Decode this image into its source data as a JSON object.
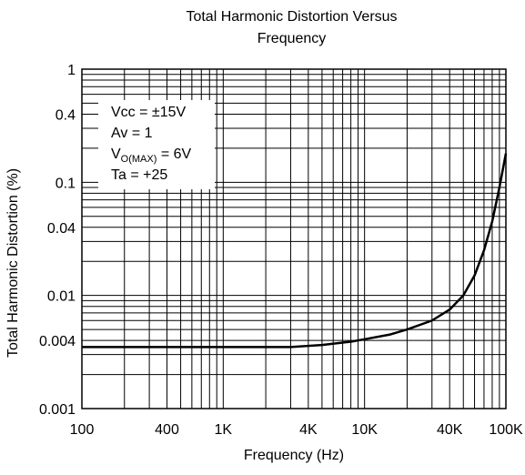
{
  "chart_data": {
    "type": "line",
    "title_line1": "Total Harmonic Distortion Versus",
    "title_line2": "Frequency",
    "xlabel": "Frequency (Hz)",
    "ylabel": "Total Harmonic Distortion (%)",
    "x_scale": "log",
    "y_scale": "log",
    "xlim": [
      100,
      100000
    ],
    "ylim": [
      0.001,
      1
    ],
    "grid": true,
    "x_ticks": [
      {
        "value": 100,
        "label": "100"
      },
      {
        "value": 400,
        "label": "400"
      },
      {
        "value": 1000,
        "label": "1K"
      },
      {
        "value": 4000,
        "label": "4K"
      },
      {
        "value": 10000,
        "label": "10K"
      },
      {
        "value": 40000,
        "label": "40K"
      },
      {
        "value": 100000,
        "label": "100K"
      }
    ],
    "y_ticks": [
      {
        "value": 1,
        "label": "1"
      },
      {
        "value": 0.4,
        "label": "0.4"
      },
      {
        "value": 0.1,
        "label": "0.1"
      },
      {
        "value": 0.04,
        "label": "0.04"
      },
      {
        "value": 0.01,
        "label": "0.01"
      },
      {
        "value": 0.004,
        "label": "0.004"
      },
      {
        "value": 0.001,
        "label": "0.001"
      }
    ],
    "conditions": {
      "vcc": "Vcc = ±15V",
      "av": "Av = 1",
      "vo_main": "V",
      "vo_sub": "O(MAX)",
      "vo_value": " = 6V",
      "ta": "Ta = +25"
    },
    "series": [
      {
        "x": [
          100,
          200,
          500,
          1000,
          2000,
          3000,
          5000,
          8000,
          10000,
          15000,
          20000,
          30000,
          40000,
          50000,
          60000,
          70000,
          80000,
          90000,
          100000
        ],
        "y": [
          0.0035,
          0.0035,
          0.0035,
          0.0035,
          0.0035,
          0.0035,
          0.00365,
          0.0039,
          0.0041,
          0.0045,
          0.005,
          0.006,
          0.0075,
          0.01,
          0.015,
          0.025,
          0.045,
          0.09,
          0.18
        ]
      }
    ]
  }
}
